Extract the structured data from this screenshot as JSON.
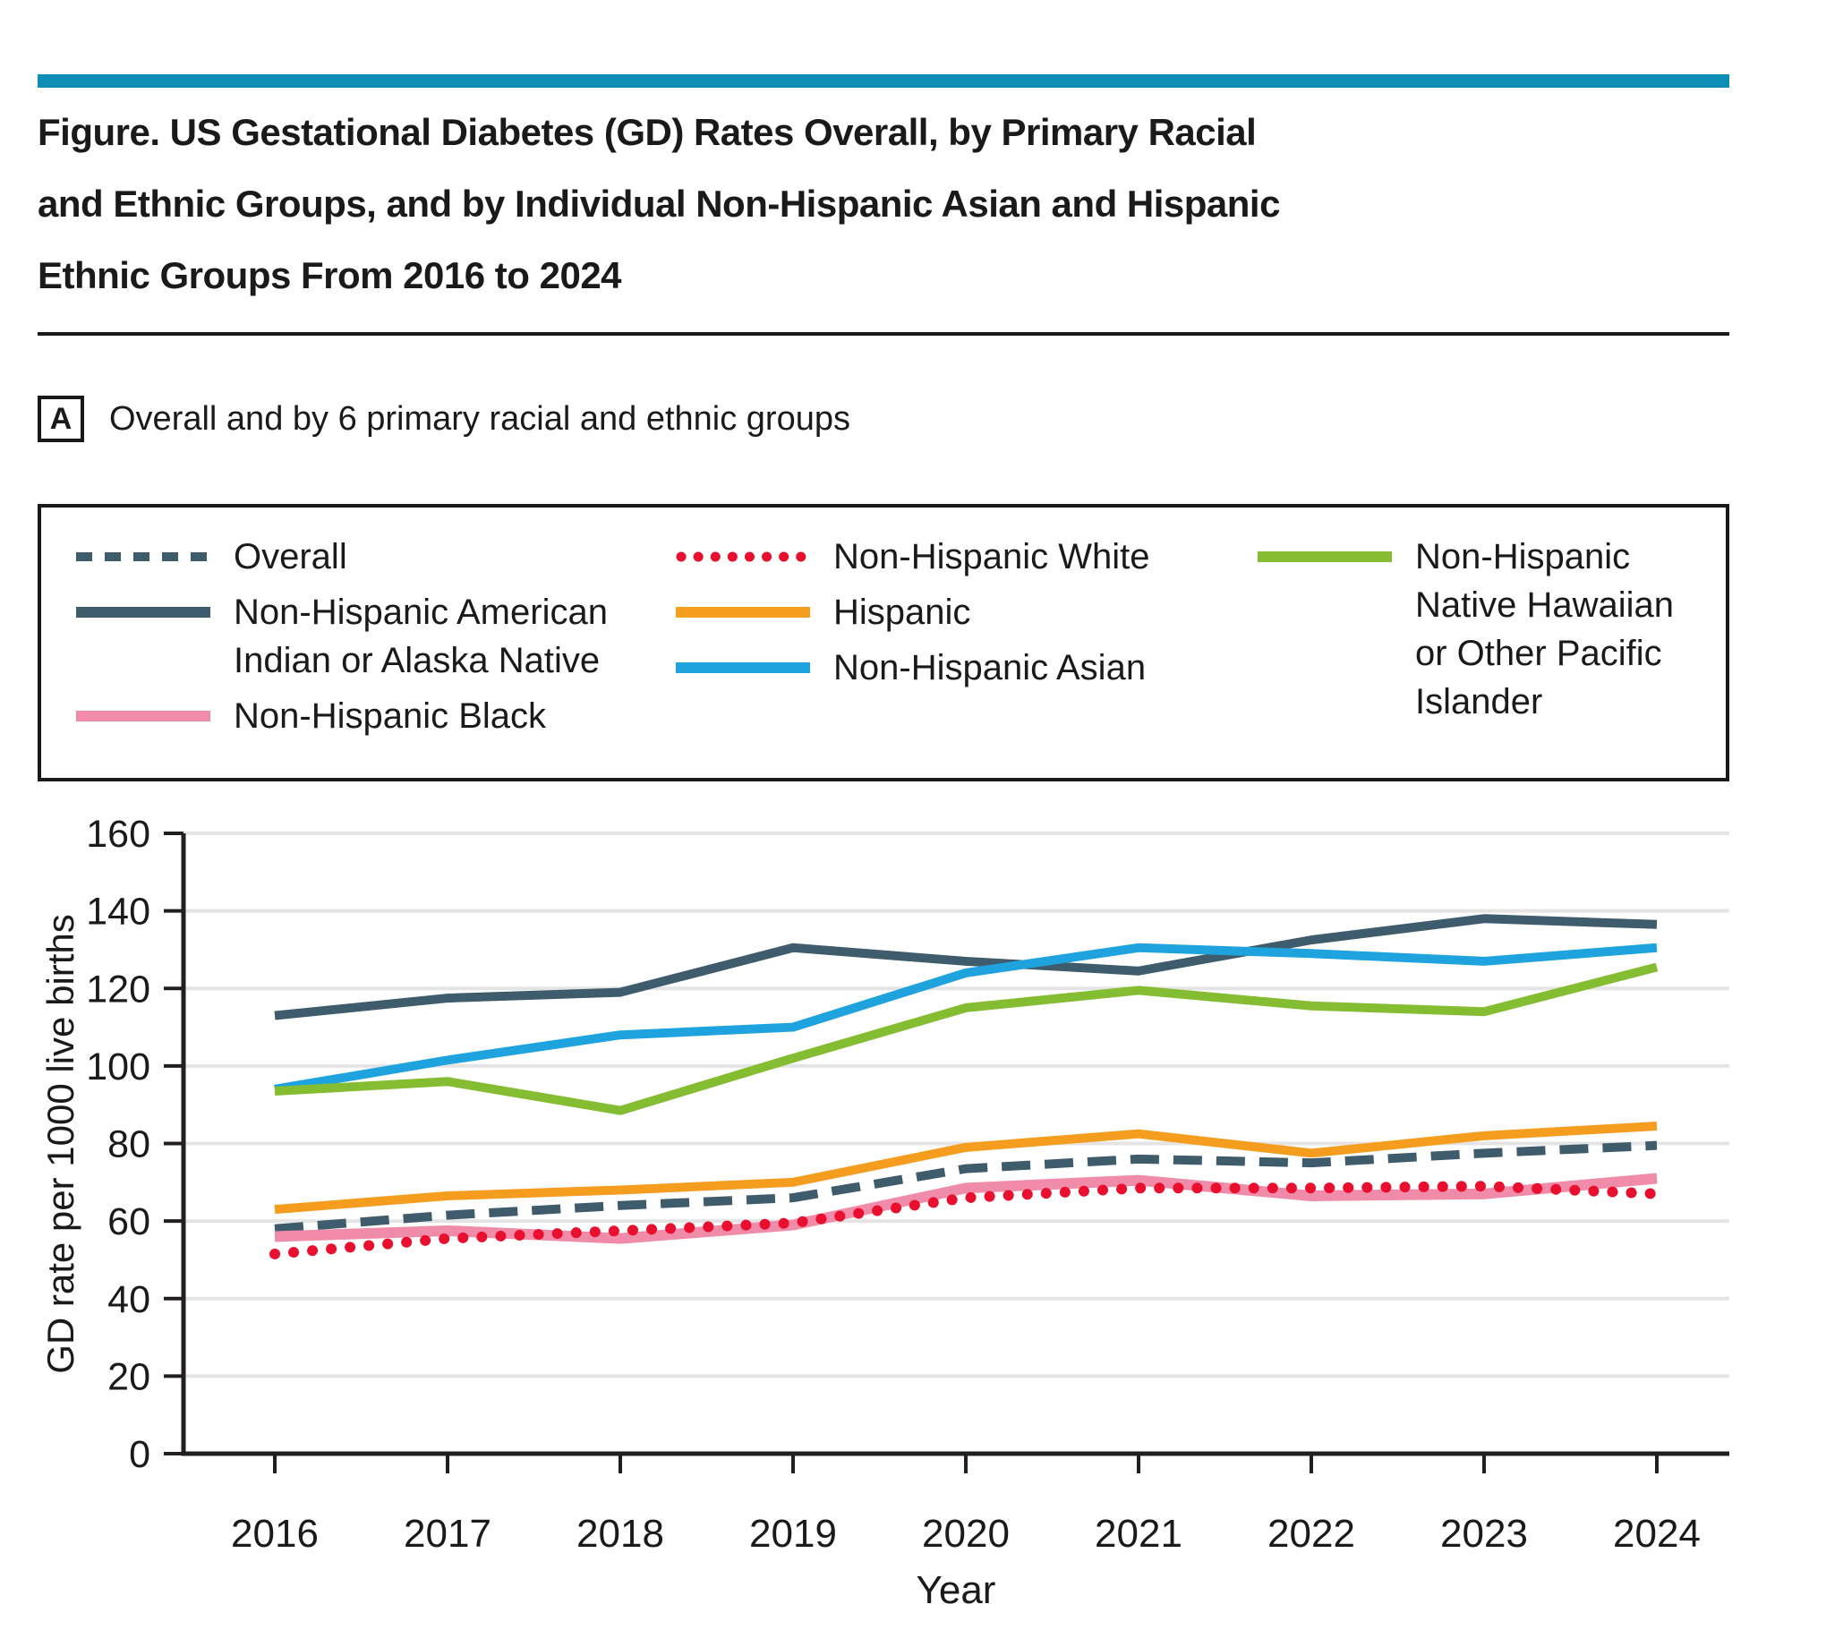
{
  "header": {
    "accent_bar_color": "#0D8EB4",
    "title": "Figure. US Gestational Diabetes (GD) Rates Overall, by Primary Racial\nand Ethnic Groups, and by Individual Non-Hispanic Asian and Hispanic\nEthnic Groups From 2016 to 2024"
  },
  "panel": {
    "label": "A",
    "caption": "Overall and by 6 primary racial and ethnic groups"
  },
  "legend": {
    "columns": [
      [
        {
          "series": "overall",
          "label": "Overall"
        },
        {
          "series": "nh_american_indian_alaska_native",
          "label": "Non-Hispanic American\nIndian or Alaska Native"
        },
        {
          "series": "nh_black",
          "label": "Non-Hispanic Black"
        }
      ],
      [
        {
          "series": "nh_white",
          "label": "Non-Hispanic White"
        },
        {
          "series": "hispanic",
          "label": "Hispanic"
        },
        {
          "series": "nh_asian",
          "label": "Non-Hispanic Asian"
        }
      ],
      [
        {
          "series": "nh_nhopi",
          "label": "Non-Hispanic\nNative Hawaiian\nor Other Pacific\nIslander"
        }
      ]
    ]
  },
  "chart_data": {
    "type": "line",
    "x": [
      2016,
      2017,
      2018,
      2019,
      2020,
      2021,
      2022,
      2023,
      2024
    ],
    "xlabel": "Year",
    "ylabel": "GD rate per 1000 live births",
    "ylim": [
      0,
      160
    ],
    "yticks": [
      0,
      20,
      40,
      60,
      80,
      100,
      120,
      140,
      160
    ],
    "grid": true,
    "legend_position": "top",
    "series": [
      {
        "key": "overall",
        "name": "Overall",
        "color": "#3E5C6B",
        "style": "dashed",
        "values": [
          58,
          61.5,
          64,
          66,
          73.5,
          76,
          75,
          77.5,
          79.5
        ]
      },
      {
        "key": "nh_american_indian_alaska_native",
        "name": "Non-Hispanic American Indian or Alaska Native",
        "color": "#3E5C6B",
        "style": "solid",
        "values": [
          113,
          117.5,
          119,
          130.5,
          127,
          124.5,
          132.5,
          138,
          136.5
        ]
      },
      {
        "key": "nh_black",
        "name": "Non-Hispanic Black",
        "color": "#F08CA9",
        "style": "solid",
        "values": [
          56,
          57.5,
          55.5,
          59,
          68.5,
          70.5,
          66.5,
          67,
          71
        ]
      },
      {
        "key": "nh_white",
        "name": "Non-Hispanic White",
        "color": "#E8102E",
        "style": "dotted",
        "values": [
          51.5,
          55.5,
          57.5,
          59.5,
          66,
          68.5,
          68.5,
          69,
          67
        ]
      },
      {
        "key": "hispanic",
        "name": "Hispanic",
        "color": "#F49D1F",
        "style": "solid",
        "values": [
          63,
          66.5,
          68,
          70,
          79,
          82.5,
          77.5,
          82,
          84.5
        ]
      },
      {
        "key": "nh_asian",
        "name": "Non-Hispanic Asian",
        "color": "#1FA3DE",
        "style": "solid",
        "values": [
          94,
          101.5,
          108,
          110,
          124,
          130.5,
          129,
          127,
          130.5
        ]
      },
      {
        "key": "nh_nhopi",
        "name": "Non-Hispanic Native Hawaiian or Other Pacific Islander",
        "color": "#85BD32",
        "style": "solid",
        "values": [
          93.5,
          96,
          88.5,
          102,
          115,
          119.5,
          115.5,
          114,
          125.5
        ]
      }
    ]
  },
  "colors": {
    "accent_bar": "#0D8EB4",
    "axis": "#231F20",
    "grid": "#E4E4E4",
    "text": "#1A1A1A"
  }
}
